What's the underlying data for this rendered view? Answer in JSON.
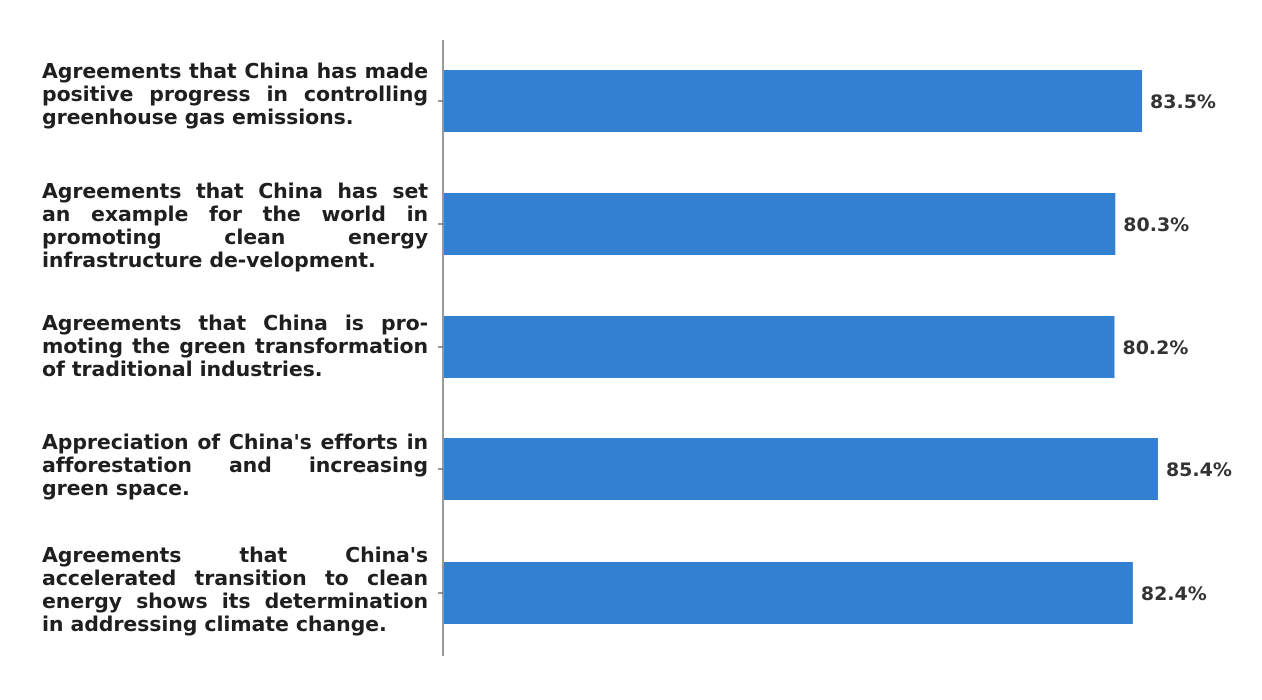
{
  "chart_data": {
    "type": "bar",
    "orientation": "horizontal",
    "categories": [
      "Agreements that China has made positive progress in controlling greenhouse gas emissions.",
      "Agreements that China has set an example for the world in promoting clean energy infrastructure de-velopment.",
      "Agreements that China is pro-moting the green transformation of traditional industries.",
      "Appreciation of China's efforts in afforestation and increasing green space.",
      "Agreements that China's accelerated transition to clean energy shows its determination in addressing climate change."
    ],
    "values": [
      83.5,
      80.3,
      80.2,
      85.4,
      82.4
    ],
    "value_labels": [
      "83.5%",
      "80.3%",
      "80.2%",
      "85.4%",
      "82.4%"
    ],
    "bar_color": "#3380d0",
    "xlim": [
      0,
      100
    ],
    "grid": false,
    "legend": "none"
  }
}
